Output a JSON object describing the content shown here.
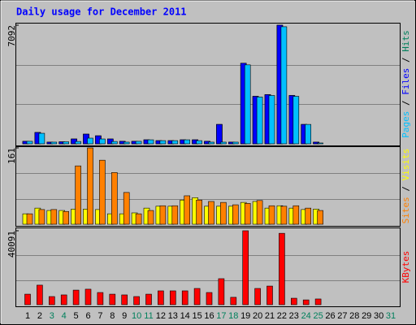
{
  "title": "Daily usage for December 2011",
  "chart_data": [
    {
      "type": "bar",
      "ylim": [
        0,
        7092
      ],
      "yticks": [
        7092
      ],
      "grid_divisions": 3,
      "legend_separator": " / ",
      "series": [
        {
          "name": "Pages",
          "color": "#00c0ff",
          "values": [
            150,
            630,
            100,
            120,
            140,
            340,
            290,
            140,
            100,
            150,
            240,
            190,
            190,
            240,
            190,
            100,
            100,
            100,
            4720,
            2800,
            2890,
            7000,
            2840,
            1160,
            50,
            0,
            0,
            0,
            0,
            0,
            0
          ]
        },
        {
          "name": "Files",
          "color": "#0000ff",
          "values": [
            150,
            680,
            100,
            120,
            290,
            580,
            480,
            290,
            150,
            150,
            240,
            190,
            190,
            240,
            240,
            150,
            1160,
            100,
            4820,
            2840,
            2940,
            7092,
            2890,
            1160,
            100,
            0,
            0,
            0,
            0,
            0,
            0
          ]
        },
        {
          "name": "Hits",
          "color": "#00805c",
          "values": [
            150,
            680,
            100,
            120,
            290,
            580,
            480,
            290,
            150,
            150,
            240,
            190,
            190,
            240,
            240,
            150,
            1160,
            100,
            4820,
            2840,
            2940,
            7092,
            2890,
            1160,
            100,
            0,
            0,
            0,
            0,
            0,
            0
          ]
        }
      ]
    },
    {
      "type": "bar",
      "ylim": [
        0,
        161
      ],
      "yticks": [
        161
      ],
      "grid_divisions": 3,
      "legend_separator": " / ",
      "series": [
        {
          "name": "Sites",
          "color": "#ff8000",
          "values": [
            22,
            31,
            31,
            27,
            123,
            161,
            135,
            109,
            67,
            22,
            29,
            39,
            39,
            60,
            51,
            48,
            46,
            41,
            44,
            50,
            39,
            38,
            39,
            34,
            29,
            0,
            0,
            0,
            0,
            0,
            0
          ]
        },
        {
          "name": "Visits",
          "color": "#ffff00",
          "values": [
            22,
            34,
            29,
            29,
            32,
            32,
            31,
            22,
            22,
            24,
            34,
            38,
            38,
            51,
            56,
            38,
            38,
            38,
            46,
            48,
            34,
            39,
            34,
            31,
            32,
            0,
            0,
            0,
            0,
            0,
            0
          ]
        }
      ]
    },
    {
      "type": "bar",
      "ylim": [
        0,
        40091
      ],
      "yticks": [
        40091
      ],
      "grid_divisions": 3,
      "legend_separator": " / ",
      "categories": [
        "1",
        "2",
        "3",
        "4",
        "5",
        "6",
        "7",
        "8",
        "9",
        "10",
        "11",
        "12",
        "13",
        "14",
        "15",
        "16",
        "17",
        "18",
        "19",
        "20",
        "21",
        "22",
        "23",
        "24",
        "25",
        "26",
        "27",
        "28",
        "29",
        "30",
        "31"
      ],
      "category_colors": [
        "#000000",
        "#000000",
        "#00805c",
        "#00805c",
        "#000000",
        "#000000",
        "#000000",
        "#000000",
        "#000000",
        "#00805c",
        "#00805c",
        "#000000",
        "#000000",
        "#000000",
        "#000000",
        "#000000",
        "#00805c",
        "#00805c",
        "#000000",
        "#000000",
        "#000000",
        "#000000",
        "#000000",
        "#00805c",
        "#00805c",
        "#000000",
        "#000000",
        "#000000",
        "#000000",
        "#000000",
        "#00805c"
      ],
      "series": [
        {
          "name": "KBytes",
          "color": "#ff0000",
          "values": [
            5700,
            10600,
            4400,
            5300,
            7900,
            8400,
            6600,
            5700,
            5300,
            4400,
            5700,
            7500,
            7500,
            7500,
            8800,
            6600,
            14100,
            4000,
            40091,
            8800,
            10100,
            38700,
            3500,
            2600,
            3100,
            0,
            0,
            0,
            0,
            0,
            0
          ]
        }
      ]
    }
  ]
}
